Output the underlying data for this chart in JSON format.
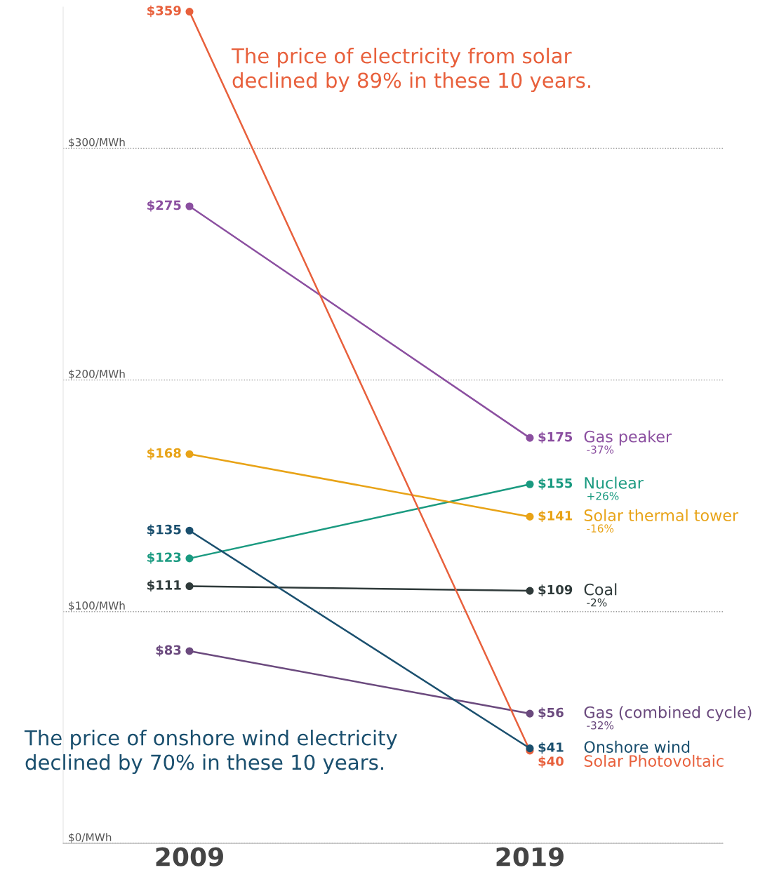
{
  "chart_data": {
    "type": "line",
    "categories": [
      "2009",
      "2019"
    ],
    "series": [
      {
        "name": "Gas peaker",
        "color": "#8b4fa0",
        "values": [
          275,
          175
        ],
        "value_labels": [
          "$275",
          "$175"
        ]
      },
      {
        "name": "Nuclear",
        "color": "#1a9a80",
        "values": [
          123,
          155
        ],
        "value_labels": [
          "$123",
          "$155"
        ]
      },
      {
        "name": "Solar thermal tower",
        "color": "#e8a317",
        "values": [
          168,
          141
        ],
        "value_labels": [
          "$168",
          "$141"
        ]
      },
      {
        "name": "Coal",
        "color": "#2f3a3a",
        "values": [
          111,
          109
        ],
        "value_labels": [
          "$111",
          "$109"
        ]
      },
      {
        "name": "Gas (combined cycle)",
        "color": "#6b4a7e",
        "values": [
          83,
          56
        ],
        "value_labels": [
          "$83",
          "$56"
        ]
      },
      {
        "name": "Solar Photovoltaic",
        "color": "#e8603c",
        "values": [
          359,
          40
        ],
        "value_labels": [
          "$359",
          "$40"
        ]
      },
      {
        "name": "Onshore wind",
        "color": "#1a4f6e",
        "values": [
          135,
          41
        ],
        "value_labels": [
          "$135",
          "$41"
        ]
      }
    ],
    "ylim": [
      0,
      361
    ],
    "yticks": [
      {
        "value": 0,
        "label": "$0/MWh"
      },
      {
        "value": 100,
        "label": "$100/MWh"
      },
      {
        "value": 200,
        "label": "$200/MWh"
      },
      {
        "value": 300,
        "label": "$300/MWh"
      }
    ],
    "grid": "y",
    "marker": "circle",
    "line_style": "solid",
    "annotations": [
      "The price of electricity from solar\ndeclined by 89% in these 10 years.",
      "The price of onshore wind electricity\ndeclined by 70% in these 10 years.",
      "-37%",
      "+26%",
      "-16%",
      "-2%",
      "-32%"
    ]
  }
}
